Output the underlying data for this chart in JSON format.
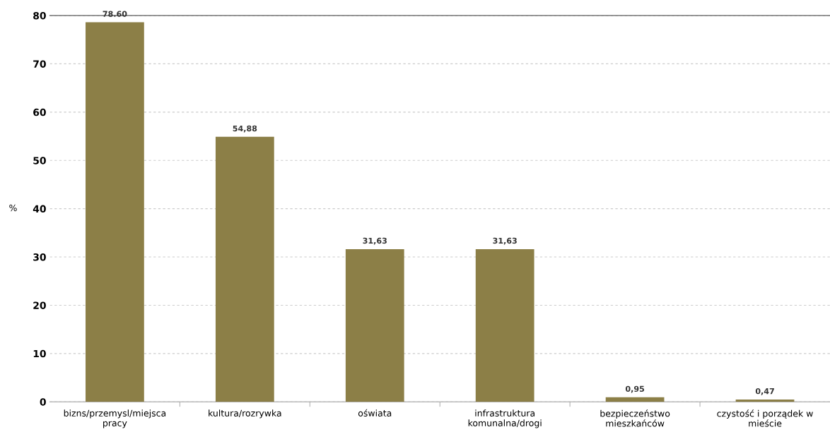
{
  "chart_data": {
    "type": "bar",
    "ylabel": "%",
    "categories": [
      "bizns/przemysl/miejsca\npracy",
      "kultura/rozrywka",
      "oświata",
      "infrastruktura\nkomunalna/drogi",
      "bezpieczeństwo\nmieszkańców",
      "czystość i porządek w\nmieście"
    ],
    "values": [
      78.6,
      54.88,
      31.63,
      31.63,
      0.95,
      0.47
    ],
    "value_labels": [
      "78.60",
      "54,88",
      "31,63",
      "31,63",
      "0,95",
      "0,47"
    ],
    "color": "#8c7f47",
    "ylim": [
      0,
      80
    ],
    "yticks": [
      0,
      10,
      20,
      30,
      40,
      50,
      60,
      70,
      80
    ],
    "grid": "y",
    "legend": false
  }
}
